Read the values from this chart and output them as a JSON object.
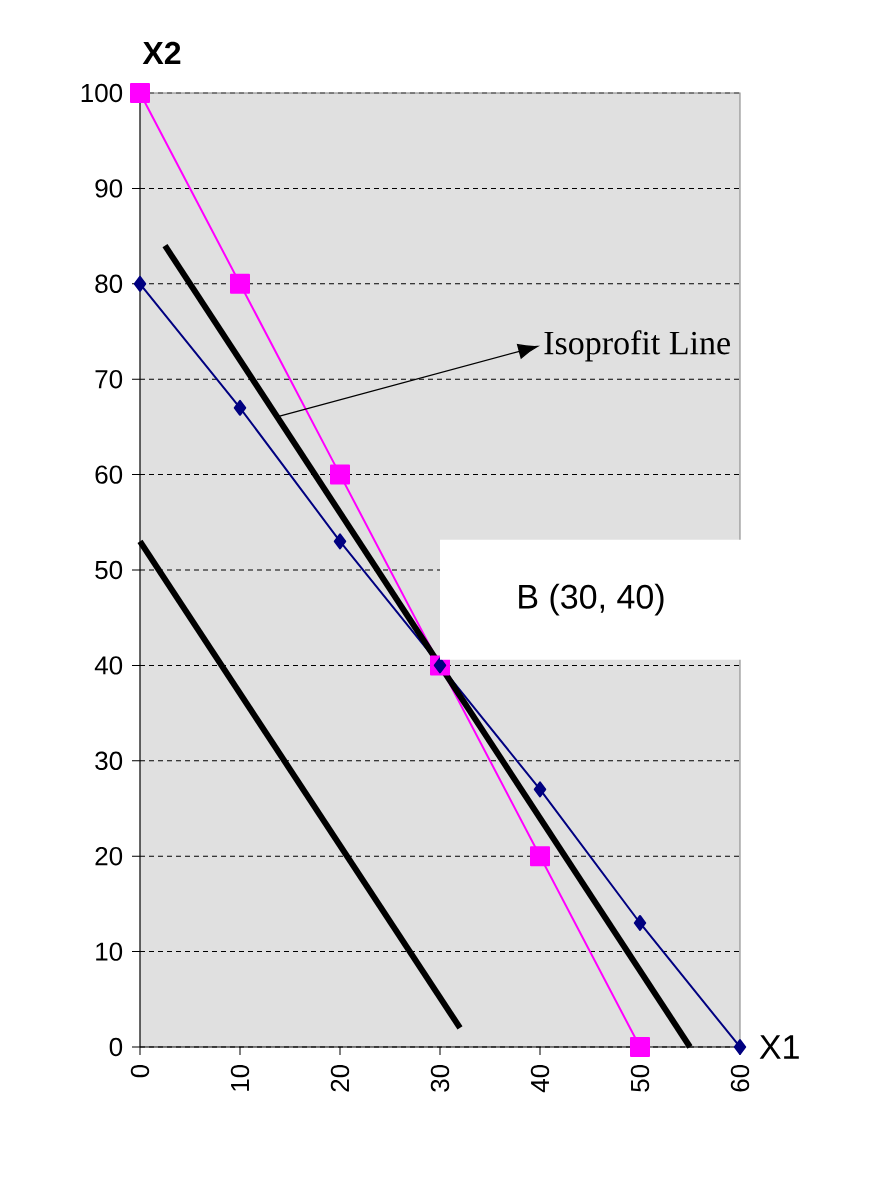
{
  "chart_data": {
    "type": "line",
    "xlabel": "X1",
    "ylabel": "X2",
    "xlim": [
      0,
      60
    ],
    "ylim": [
      0,
      100
    ],
    "xticks": [
      0,
      10,
      20,
      30,
      40,
      50,
      60
    ],
    "yticks": [
      0,
      10,
      20,
      30,
      40,
      50,
      60,
      70,
      80,
      90,
      100
    ],
    "grid": "y",
    "line_style": "solid",
    "series": [
      {
        "color": "#ff00ff",
        "marker": "square",
        "x": [
          0,
          10,
          20,
          30,
          40,
          50
        ],
        "values": [
          100,
          80,
          60,
          40,
          20,
          0
        ]
      },
      {
        "color": "#000080",
        "marker": "diamond",
        "x": [
          0,
          10,
          20,
          30,
          40,
          50,
          60
        ],
        "values": [
          80,
          67,
          53,
          40,
          27,
          13,
          0
        ]
      },
      {
        "color": "#000000",
        "marker": "none",
        "x": [
          2.5,
          55
        ],
        "values": [
          84,
          0
        ]
      },
      {
        "color": "#000000",
        "marker": "none",
        "x": [
          0,
          32
        ],
        "values": [
          53,
          2
        ]
      }
    ],
    "annotations": [
      {
        "text": "Isoprofit Line",
        "x": 13.5,
        "y": 66
      },
      {
        "text": "B (30, 40)",
        "x": 30,
        "y": 40
      }
    ]
  }
}
